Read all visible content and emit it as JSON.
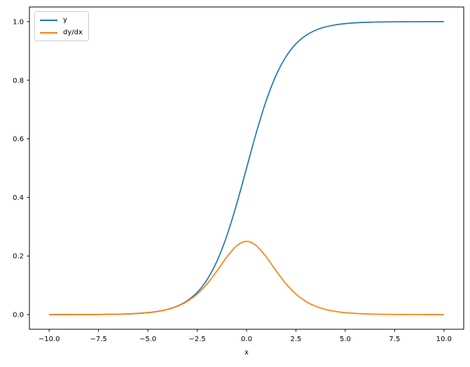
{
  "chart_data": {
    "type": "line",
    "title": "",
    "xlabel": "x",
    "ylabel": "",
    "xlim": [
      -11,
      11
    ],
    "ylim": [
      -0.05,
      1.05
    ],
    "grid": false,
    "background_color": "#ffffff",
    "spine_color": "#000000",
    "legend": {
      "position": "upper left",
      "entries": [
        {
          "label": "y",
          "color": "#1f77b4"
        },
        {
          "label": "dy/dx",
          "color": "#ff7f0e"
        }
      ]
    },
    "xticks": {
      "values": [
        -10,
        -7.5,
        -5,
        -2.5,
        0,
        2.5,
        5,
        7.5,
        10
      ],
      "labels": [
        "−10.0",
        "−7.5",
        "−5.0",
        "−2.5",
        "0.0",
        "2.5",
        "5.0",
        "7.5",
        "10.0"
      ]
    },
    "yticks": {
      "values": [
        0,
        0.2,
        0.4,
        0.6,
        0.8,
        1.0
      ],
      "labels": [
        "0.0",
        "0.2",
        "0.4",
        "0.6",
        "0.8",
        "1.0"
      ]
    },
    "x": [
      -10,
      -9.5,
      -9,
      -8.5,
      -8,
      -7.5,
      -7,
      -6.5,
      -6,
      -5.5,
      -5,
      -4.5,
      -4,
      -3.5,
      -3,
      -2.5,
      -2,
      -1.5,
      -1,
      -0.5,
      0,
      0.5,
      1,
      1.5,
      2,
      2.5,
      3,
      3.5,
      4,
      4.5,
      5,
      5.5,
      6,
      6.5,
      7,
      7.5,
      8,
      8.5,
      9,
      9.5,
      10
    ],
    "series": [
      {
        "name": "y",
        "color": "#1f77b4",
        "values": [
          5e-05,
          7e-05,
          0.00012,
          0.0002,
          0.00034,
          0.00055,
          0.00091,
          0.0015,
          0.00247,
          0.00407,
          0.00669,
          0.01099,
          0.01799,
          0.02931,
          0.04743,
          0.07586,
          0.1192,
          0.18243,
          0.26894,
          0.37754,
          0.5,
          0.62246,
          0.73106,
          0.81757,
          0.8808,
          0.92414,
          0.95257,
          0.97069,
          0.98201,
          0.98901,
          0.99331,
          0.99593,
          0.99753,
          0.9985,
          0.99909,
          0.99945,
          0.99966,
          0.9998,
          0.99988,
          0.99993,
          0.99995
        ]
      },
      {
        "name": "dy/dx",
        "color": "#ff7f0e",
        "values": [
          5e-05,
          7e-05,
          0.00012,
          0.0002,
          0.00034,
          0.00055,
          0.00091,
          0.0015,
          0.00246,
          0.00405,
          0.00665,
          0.01087,
          0.01767,
          0.02845,
          0.04518,
          0.0701,
          0.10499,
          0.14914,
          0.19661,
          0.235,
          0.25,
          0.235,
          0.19661,
          0.14914,
          0.10499,
          0.0701,
          0.04518,
          0.02845,
          0.01767,
          0.01087,
          0.00665,
          0.00405,
          0.00246,
          0.0015,
          0.00091,
          0.00055,
          0.00034,
          0.0002,
          0.00012,
          7e-05,
          5e-05
        ]
      }
    ]
  }
}
